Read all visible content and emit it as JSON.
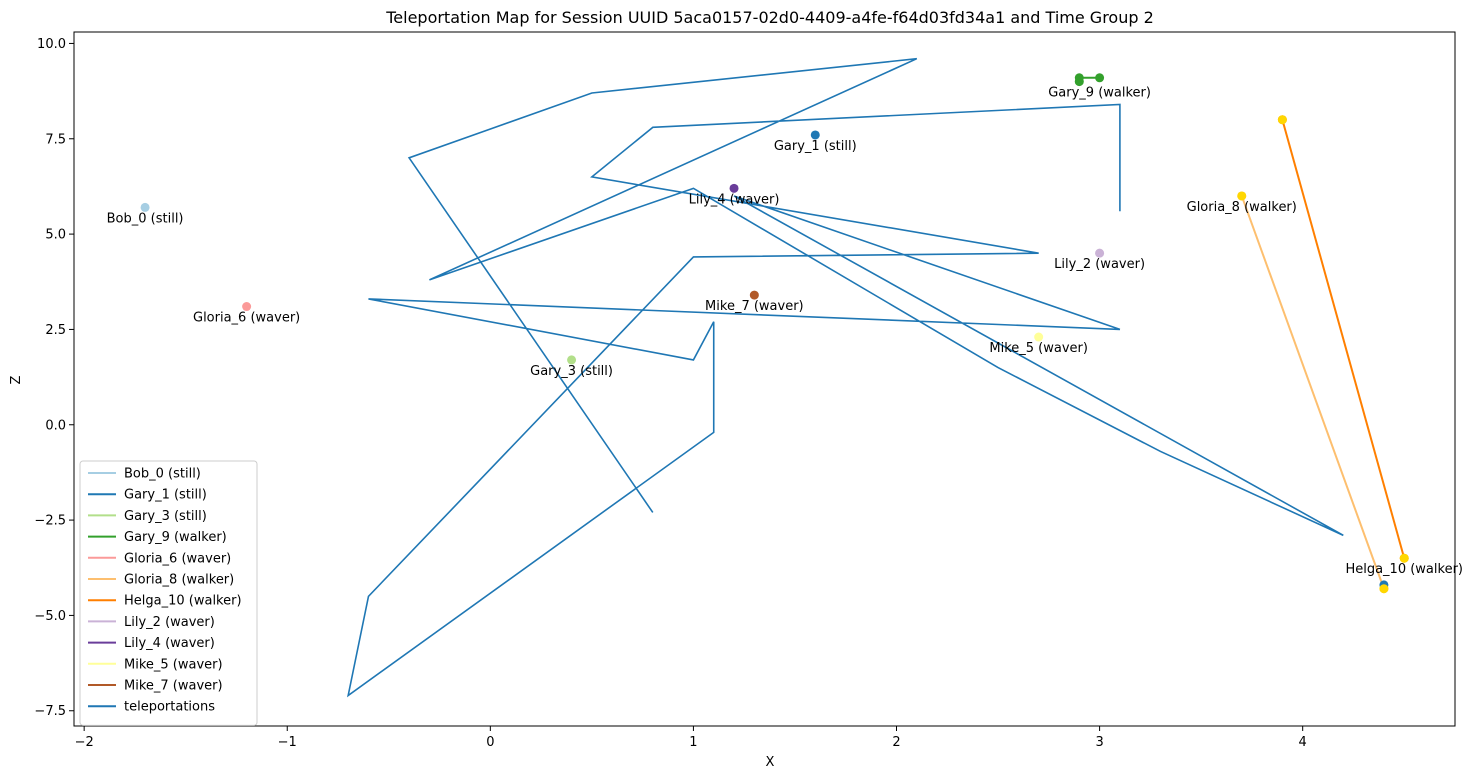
{
  "chart_data": {
    "type": "line",
    "title": "Teleportation Map for Session UUID 5aca0157-02d0-4409-a4fe-f64d03fd34a1 and Time Group 2",
    "xlabel": "X",
    "ylabel": "Z",
    "xlim": [
      -2.05,
      4.75
    ],
    "ylim": [
      -7.9,
      10.3
    ],
    "xticks": [
      -2,
      -1,
      0,
      1,
      2,
      3,
      4
    ],
    "yticks": [
      -7.5,
      -5.0,
      -2.5,
      0.0,
      2.5,
      5.0,
      7.5,
      10.0
    ],
    "xtick_labels": [
      "−2",
      "−1",
      "0",
      "1",
      "2",
      "3",
      "4"
    ],
    "ytick_labels": [
      "−7.5",
      "−5.0",
      "−2.5",
      "0.0",
      "2.5",
      "5.0",
      "7.5",
      "10.0"
    ],
    "grid": false,
    "legend_position": "lower-left",
    "series": [
      {
        "name": "Bob_0 (still)",
        "color": "#a6cee3",
        "points": [
          [
            -1.7,
            5.7
          ]
        ],
        "label": "Bob_0 (still)",
        "label_at": [
          -1.7,
          5.7
        ]
      },
      {
        "name": "Gary_1 (still)",
        "color": "#1f78b4",
        "points": [
          [
            1.6,
            7.6
          ]
        ],
        "label": "Gary_1 (still)",
        "label_at": [
          1.6,
          7.6
        ]
      },
      {
        "name": "Gary_3 (still)",
        "color": "#b2df8a",
        "points": [
          [
            0.4,
            1.7
          ]
        ],
        "label": "Gary_3 (still)",
        "label_at": [
          0.4,
          1.7
        ]
      },
      {
        "name": "Gary_9 (walker)",
        "color": "#33a02c",
        "points": [
          [
            2.9,
            9.0
          ],
          [
            2.9,
            9.1
          ],
          [
            3.0,
            9.1
          ]
        ],
        "label": "Gary_9 (walker)",
        "label_at": [
          3.0,
          9.0
        ]
      },
      {
        "name": "Gloria_6 (waver)",
        "color": "#fb9a99",
        "points": [
          [
            -1.2,
            3.1
          ]
        ],
        "label": "Gloria_6 (waver)",
        "label_at": [
          -1.2,
          3.1
        ]
      },
      {
        "name": "Gloria_8 (walker)",
        "color": "#fdbf6f",
        "points": [
          [
            3.7,
            6.0
          ],
          [
            4.4,
            -4.3
          ]
        ],
        "label": "Gloria_8 (walker)",
        "label_at": [
          3.7,
          6.0
        ]
      },
      {
        "name": "Helga_10 (walker)",
        "color": "#ff7f00",
        "points": [
          [
            3.9,
            8.0
          ],
          [
            4.5,
            -3.5
          ]
        ],
        "label": "Helga_10 (walker)",
        "label_at": [
          4.5,
          -3.5
        ]
      },
      {
        "name": "Lily_2 (waver)",
        "color": "#cab2d6",
        "points": [
          [
            3.0,
            4.5
          ]
        ],
        "label": "Lily_2 (waver)",
        "label_at": [
          3.0,
          4.5
        ]
      },
      {
        "name": "Lily_4 (waver)",
        "color": "#6a3d9a",
        "points": [
          [
            1.2,
            6.2
          ]
        ],
        "label": "Lily_4 (waver)",
        "label_at": [
          1.2,
          6.2
        ]
      },
      {
        "name": "Mike_5 (waver)",
        "color": "#ffff99",
        "points": [
          [
            2.7,
            2.3
          ]
        ],
        "label": "Mike_5 (waver)",
        "label_at": [
          2.7,
          2.3
        ]
      },
      {
        "name": "Mike_7 (waver)",
        "color": "#b15928",
        "points": [
          [
            1.3,
            3.4
          ]
        ],
        "label": "Mike_7 (waver)",
        "label_at": [
          1.3,
          3.4
        ]
      }
    ],
    "extra_markers": [
      {
        "color": "#1f78b4",
        "point": [
          4.4,
          -4.2
        ]
      },
      {
        "color": "#ffd700",
        "point": [
          3.7,
          6.0
        ]
      },
      {
        "color": "#ffd700",
        "point": [
          3.9,
          8.0
        ]
      },
      {
        "color": "#ffd700",
        "point": [
          4.5,
          -3.5
        ]
      },
      {
        "color": "#ffd700",
        "point": [
          4.4,
          -4.3
        ]
      }
    ],
    "teleportations": {
      "name": "teleportations",
      "color": "#1f77b4",
      "points": [
        [
          3.1,
          5.6
        ],
        [
          3.1,
          8.4
        ],
        [
          0.8,
          7.8
        ],
        [
          0.5,
          6.5
        ],
        [
          2.7,
          4.5
        ],
        [
          1.0,
          4.4
        ],
        [
          -0.6,
          -4.5
        ],
        [
          -0.7,
          -7.1
        ],
        [
          1.1,
          -0.2
        ],
        [
          1.1,
          2.7
        ],
        [
          1.0,
          1.7
        ],
        [
          -0.6,
          3.3
        ],
        [
          3.1,
          2.5
        ],
        [
          1.2,
          6.0
        ],
        [
          4.2,
          -2.9
        ],
        [
          3.3,
          -0.7
        ],
        [
          2.5,
          1.5
        ],
        [
          1.0,
          6.2
        ],
        [
          1.0,
          6.2
        ],
        [
          -0.3,
          3.8
        ],
        [
          2.1,
          9.6
        ],
        [
          0.5,
          8.7
        ],
        [
          -0.4,
          7.0
        ],
        [
          0.8,
          -2.3
        ]
      ]
    }
  }
}
